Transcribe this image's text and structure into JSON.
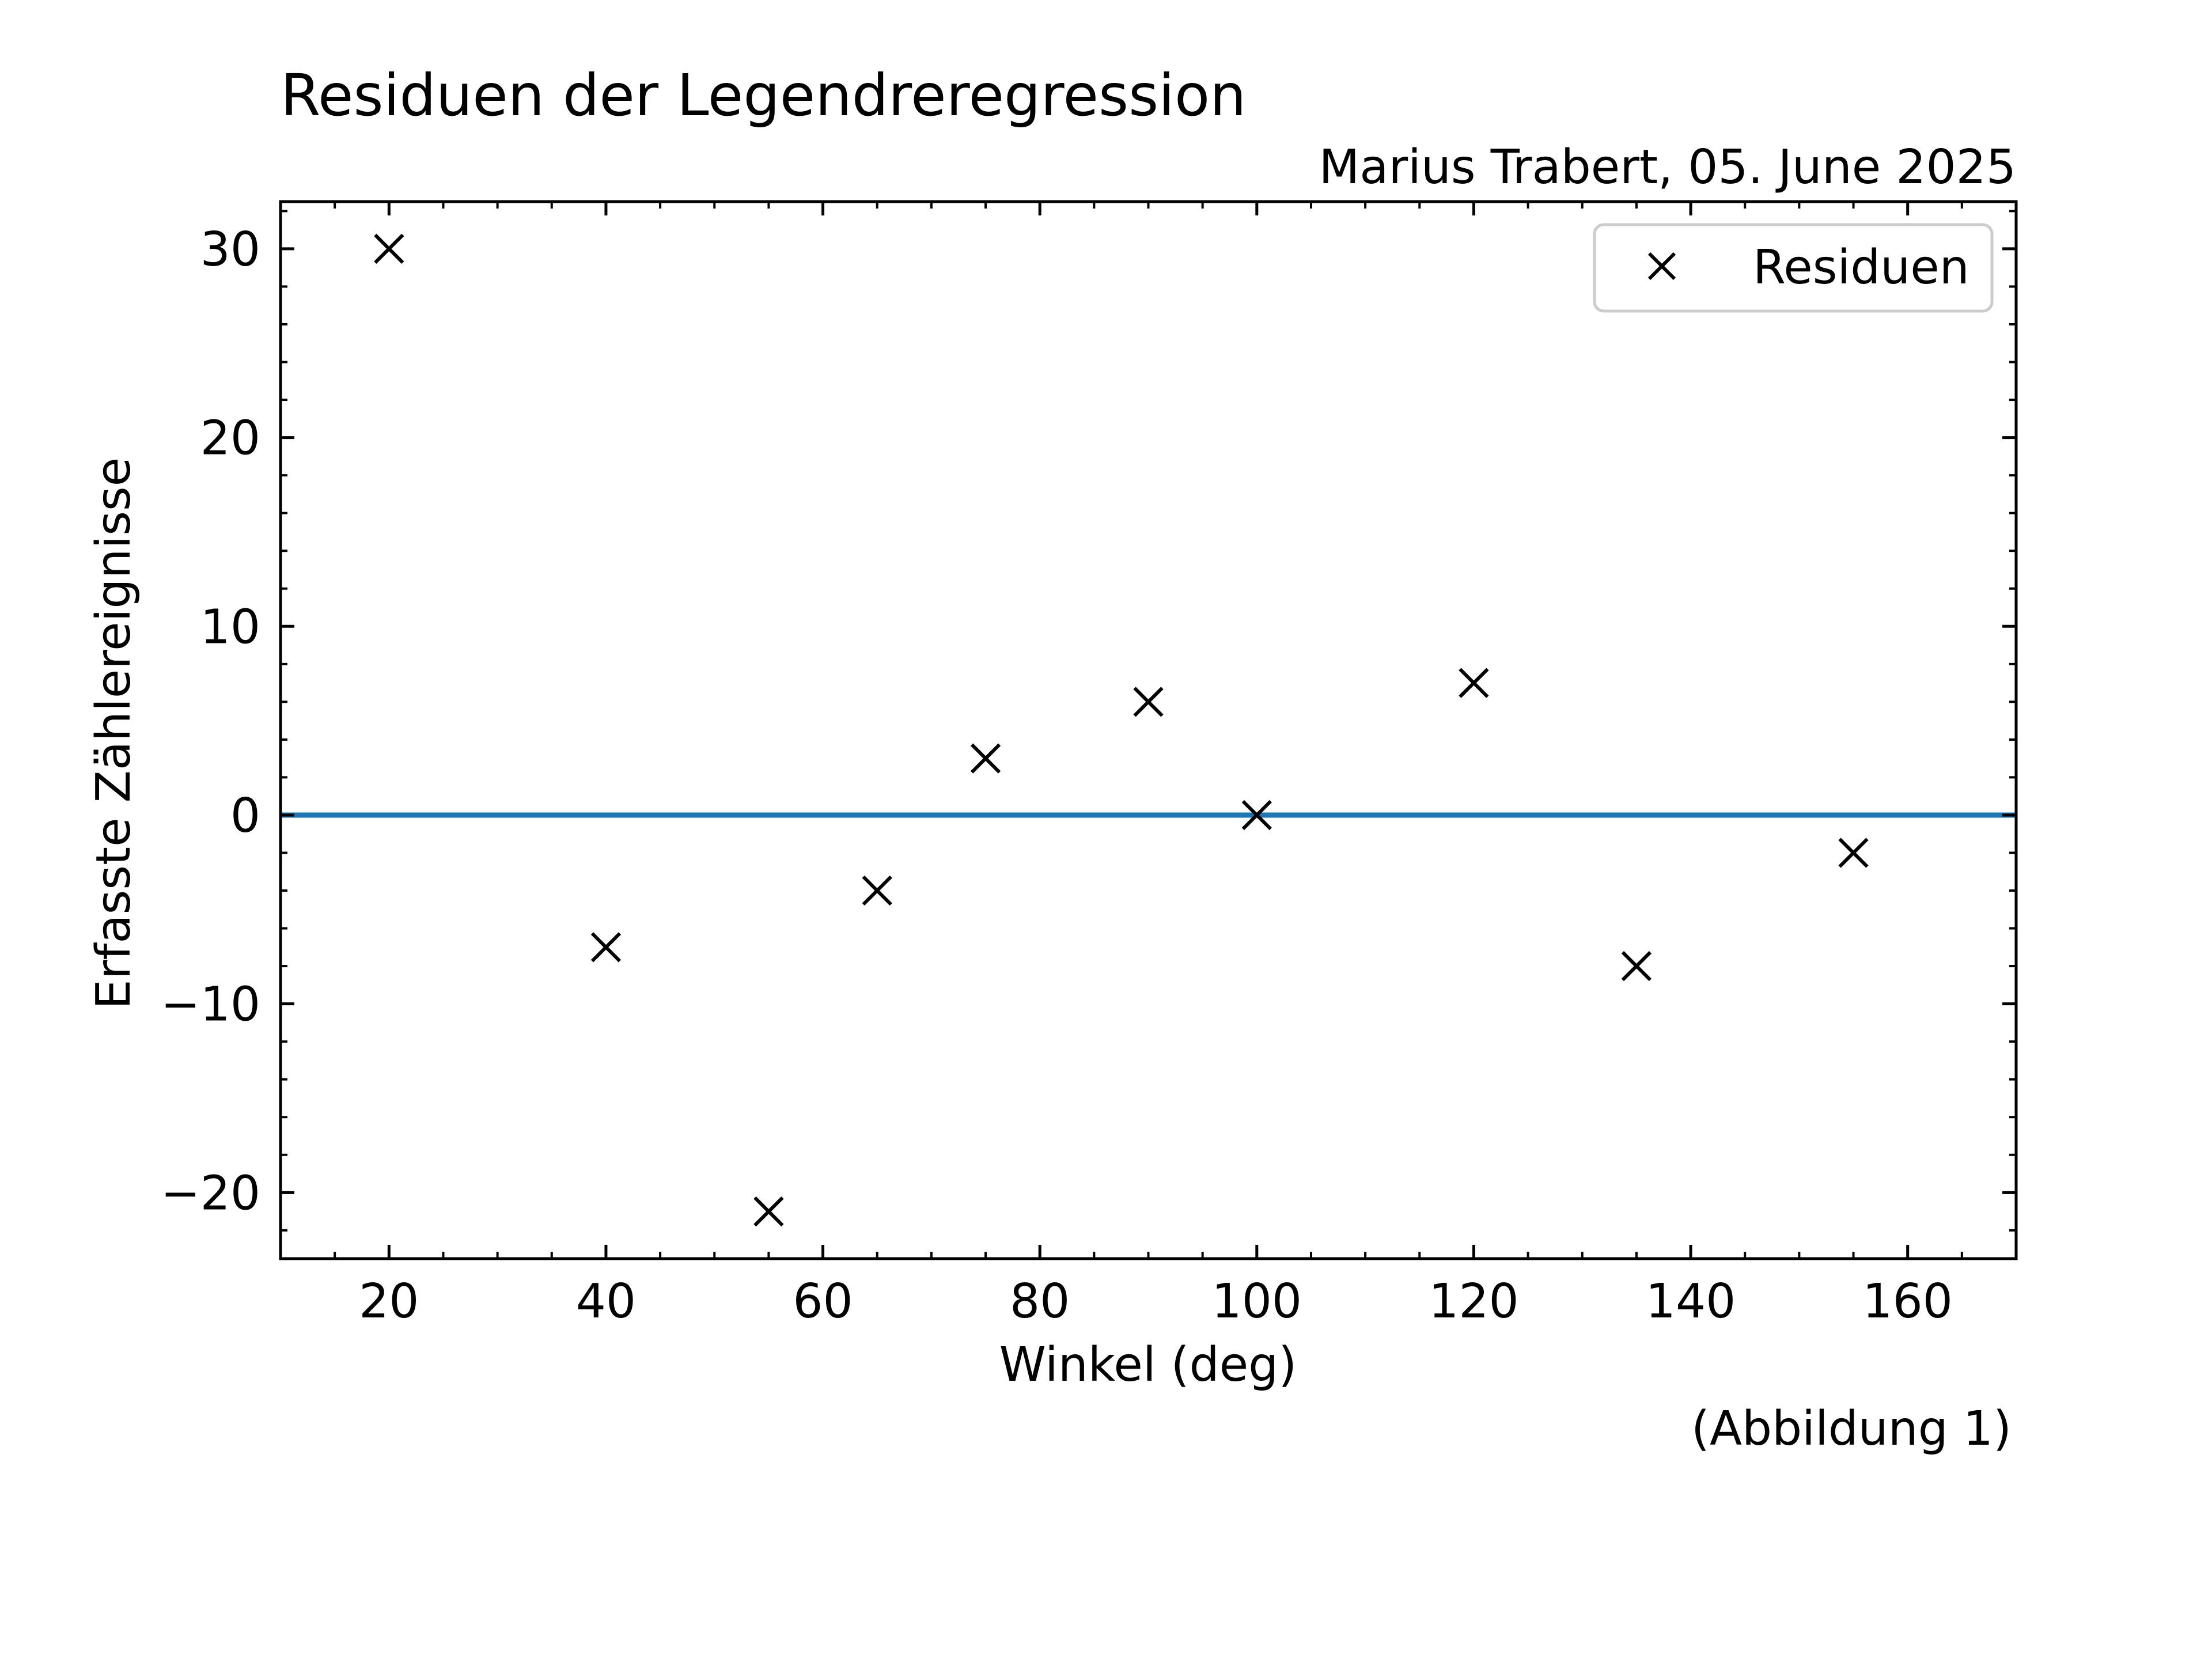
{
  "chart_data": {
    "type": "scatter",
    "title": "Residuen der Legendreregression",
    "subtitle": "Marius Trabert, 05. June 2025",
    "xlabel": "Winkel (deg)",
    "ylabel": "Erfasste Zählereignisse",
    "caption": "(Abbildung 1)",
    "xlim": [
      10,
      170
    ],
    "ylim": [
      -23.5,
      32.5
    ],
    "xticks": [
      20,
      40,
      60,
      80,
      100,
      120,
      140,
      160
    ],
    "yticks": [
      -20,
      -10,
      0,
      10,
      20,
      30
    ],
    "xtick_labels": [
      "20",
      "40",
      "60",
      "80",
      "100",
      "120",
      "140",
      "160"
    ],
    "ytick_labels": [
      "−20",
      "−10",
      "0",
      "10",
      "20",
      "30"
    ],
    "grid": false,
    "legend_position": "top-right",
    "series": [
      {
        "name": "Residuen",
        "marker": "x",
        "color": "#000000",
        "x": [
          20,
          40,
          55,
          65,
          75,
          90,
          100,
          120,
          135,
          155
        ],
        "y": [
          30,
          -7,
          -21,
          -4,
          3,
          6,
          0,
          7,
          -8,
          -2
        ]
      }
    ],
    "reference_line": {
      "y": 0,
      "color": "#1f77b4"
    }
  }
}
